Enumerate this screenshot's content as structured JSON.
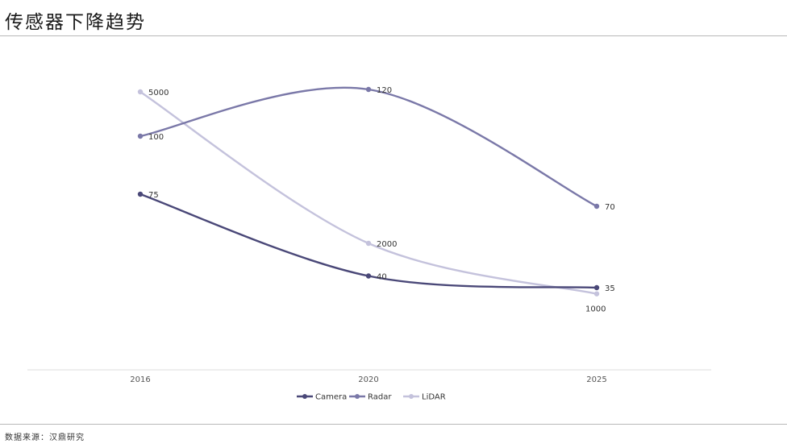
{
  "header": {
    "title": "传感器下降趋势"
  },
  "footer": {
    "source": "数据来源：汉鼎研究"
  },
  "chart_data": {
    "type": "line",
    "title": "传感器下降趋势",
    "x": [
      "2016",
      "2020",
      "2025"
    ],
    "series": [
      {
        "name": "Camera",
        "values": [
          75,
          40,
          35
        ],
        "color": "#4a4878"
      },
      {
        "name": "Radar",
        "values": [
          100,
          120,
          70
        ],
        "color": "#7a78a8"
      },
      {
        "name": "LiDAR",
        "values": [
          5000,
          2000,
          1000
        ],
        "color": "#c4c2dc"
      }
    ],
    "legend_position": "bottom-center",
    "grid": false,
    "data_labels": true,
    "smooth": true
  }
}
